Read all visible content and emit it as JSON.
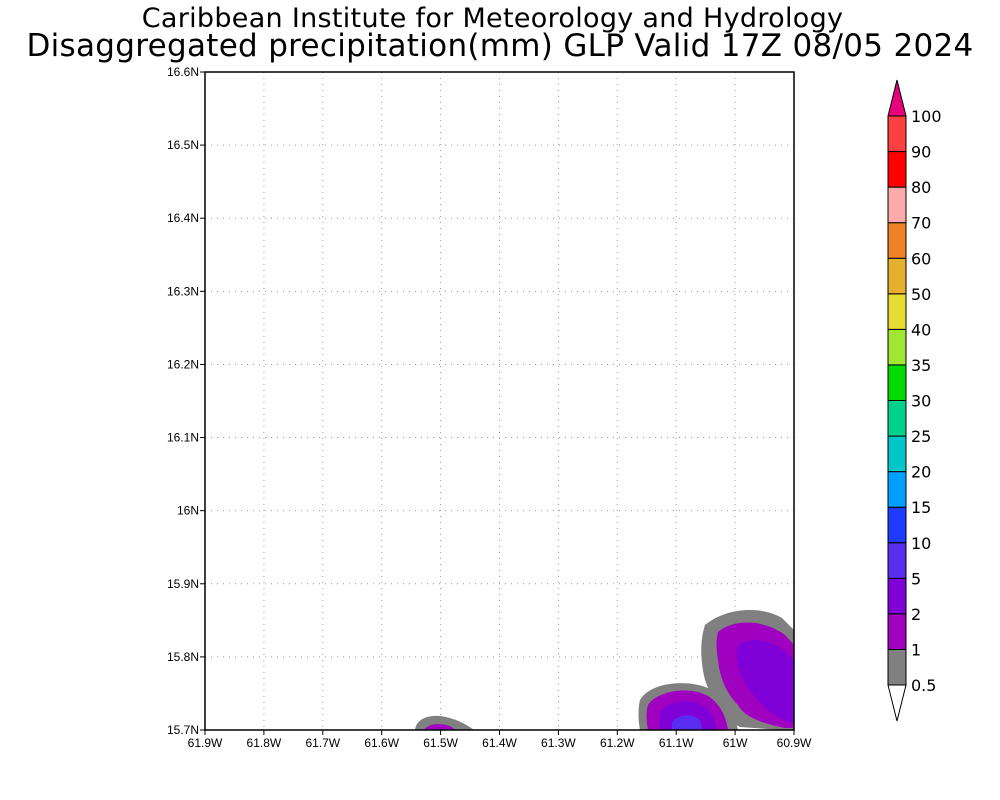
{
  "header": {
    "title": "Caribbean Institute for Meteorology and Hydrology",
    "subtitle": "Disaggregated precipitation(mm) GLP Valid 17Z 08/05 2024"
  },
  "map": {
    "lat_ticks": [
      "16.6N",
      "16.5N",
      "16.4N",
      "16.3N",
      "16.2N",
      "16.1N",
      "16N",
      "15.9N",
      "15.8N",
      "15.7N"
    ],
    "lon_ticks": [
      "61.9W",
      "61.8W",
      "61.7W",
      "61.6W",
      "61.5W",
      "61.4W",
      "61.3W",
      "61.2W",
      "61.1W",
      "61W",
      "60.9W"
    ],
    "lat_range": [
      15.7,
      16.6
    ],
    "lon_range": [
      -61.9,
      -60.9
    ]
  },
  "colorbar": {
    "levels": [
      "0.5",
      "1",
      "2",
      "5",
      "10",
      "15",
      "20",
      "25",
      "30",
      "35",
      "40",
      "50",
      "60",
      "70",
      "80",
      "90",
      "100"
    ],
    "colors": [
      "#808080",
      "#a000c0",
      "#8000d8",
      "#5a2ef0",
      "#1e3cff",
      "#00a0ff",
      "#00c8c8",
      "#00d28c",
      "#00dc00",
      "#a0e632",
      "#e6dc32",
      "#e6af2d",
      "#f08228",
      "#ffaaaa",
      "#ff0000",
      "#ff4040"
    ],
    "over_color": "#e6007a",
    "under_color": "#ffffff"
  }
}
